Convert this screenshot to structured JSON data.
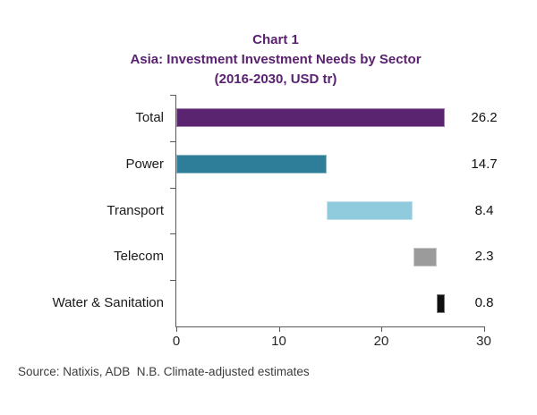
{
  "title": {
    "line1": "Chart 1",
    "line2": "Asia: Investment Investment Needs by Sector",
    "line3": "(2016-2030, USD tr)"
  },
  "source_note": "Source: Natixis, ADB  N.B. Climate-adjusted estimates",
  "colors": {
    "title_purple": "#5a2170",
    "axis_gray": "#595959"
  },
  "chart_data": {
    "type": "bar",
    "orientation": "horizontal",
    "style": "waterfall",
    "title": "Chart 1 — Asia: Investment Investment Needs by Sector (2016-2030, USD tr)",
    "categories": [
      "Total",
      "Power",
      "Transport",
      "Telecom",
      "Water & Sanitation"
    ],
    "values": [
      26.2,
      14.7,
      8.4,
      2.3,
      0.8
    ],
    "segment_starts": [
      0,
      0,
      14.7,
      23.1,
      25.4
    ],
    "value_labels": [
      "26.2",
      "14.7",
      "8.4",
      "2.3",
      "0.8"
    ],
    "bar_colors": [
      "#5a2470",
      "#2e7e99",
      "#8fcbdc",
      "#9b9b9b",
      "#101010"
    ],
    "xlim": [
      0,
      30
    ],
    "x_ticks": [
      "0",
      "10",
      "20",
      "30"
    ],
    "grid": false,
    "legend": false
  }
}
